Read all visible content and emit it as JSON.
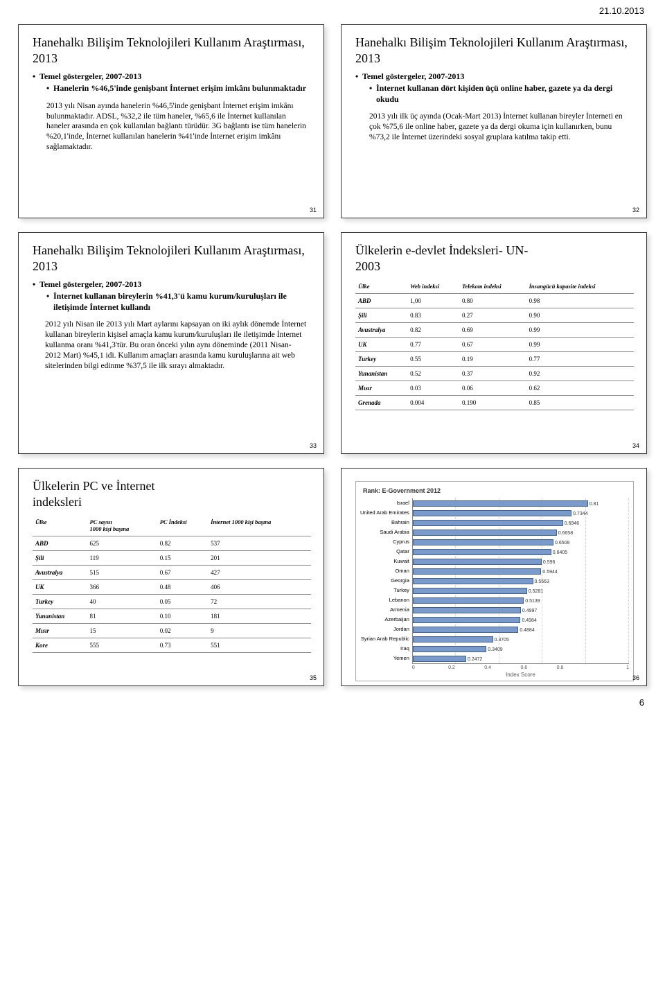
{
  "header_date": "21.10.2013",
  "page_number": "6",
  "slides": {
    "s31": {
      "title": "Hanehalkı Bilişim Teknolojileri Kullanım Araştırması, 2013",
      "bullet_l1": "Temel göstergeler, 2007-2013",
      "bullet_l2": "Hanelerin %46,5'inde genişbant İnternet erişim imkânı bulunmaktadır",
      "body": "2013 yılı Nisan ayında hanelerin %46,5'inde genişbant İnternet erişim imkânı bulunmaktadır. ADSL, %32,2 ile tüm haneler, %65,6 ile İnternet kullanılan haneler arasında en çok kullanılan bağlantı türüdür. 3G bağlantı ise tüm hanelerin %20,1'inde, İnternet kullanılan hanelerin %41'inde İnternet erişim imkânı sağlamaktadır.",
      "num": "31"
    },
    "s32": {
      "title": "Hanehalkı Bilişim Teknolojileri Kullanım Araştırması, 2013",
      "bullet_l1": "Temel göstergeler, 2007-2013",
      "bullet_l2": "İnternet kullanan dört kişiden üçü online haber, gazete ya da dergi okudu",
      "body": "2013 yılı ilk üç ayında (Ocak-Mart 2013) İnternet kullanan bireyler İnterneti en çok %75,6 ile online haber, gazete ya da dergi okuma için kullanırken, bunu %73,2 ile İnternet üzerindeki sosyal gruplara katılma takip etti.",
      "num": "32"
    },
    "s33": {
      "title": "Hanehalkı Bilişim Teknolojileri Kullanım Araştırması, 2013",
      "bullet_l1": "Temel göstergeler, 2007-2013",
      "bullet_l2": "İnternet kullanan bireylerin %41,3'ü kamu kurum/kuruluşları ile iletişimde İnternet kullandı",
      "body": "2012 yılı Nisan ile 2013 yılı Mart aylarını kapsayan on iki aylık dönemde İnternet kullanan bireylerin kişisel amaçla kamu kurum/kuruluşları ile iletişimde İnternet kullanma oranı %41,3'tür. Bu oran önceki yılın aynı döneminde (2011 Nisan-2012 Mart) %45,1 idi. Kullanım amaçları arasında kamu kuruluşlarına ait web sitelerinden bilgi edinme %37,5 ile ilk sırayı almaktadır.",
      "num": "33"
    },
    "s34": {
      "title": "Ülkelerin e-devlet İndeksleri- UN-\n2003",
      "table": {
        "headers": [
          "Ülke",
          "Web indeksi",
          "Telekom indeksi",
          "İnsangücü kapasite indeksi"
        ],
        "rows": [
          [
            "ABD",
            "1,00",
            "0.80",
            "0.98"
          ],
          [
            "Şili",
            "0.83",
            "0.27",
            "0.90"
          ],
          [
            "Avustralya",
            "0.82",
            "0.69",
            "0.99"
          ],
          [
            "UK",
            "0.77",
            "0.67",
            "0.99"
          ],
          [
            "Turkey",
            "0.55",
            "0.19",
            "0.77"
          ],
          [
            "Yunanistan",
            "0.52",
            "0.37",
            "0.92"
          ],
          [
            "Mısır",
            "0.03",
            "0.06",
            "0.62"
          ],
          [
            "Grenada",
            "0.004",
            "0.190",
            "0.85"
          ]
        ]
      },
      "num": "34"
    },
    "s35": {
      "title": "Ülkelerin PC ve İnternet\nindeksleri",
      "table": {
        "headers": [
          "Ülke",
          "PC sayısı\n1000 kişi başına",
          "PC İndeksi",
          "İnternet 1000 kişi başına"
        ],
        "rows": [
          [
            "ABD",
            "625",
            "0.82",
            "537"
          ],
          [
            "Şili",
            "119",
            "0.15",
            "201"
          ],
          [
            "Avustralya",
            "515",
            "0.67",
            "427"
          ],
          [
            "UK",
            "366",
            "0.48",
            "406"
          ],
          [
            "Turkey",
            "40",
            "0.05",
            "72"
          ],
          [
            "Yunanistan",
            "81",
            "0.10",
            "181"
          ],
          [
            "Mısır",
            "15",
            "0.02",
            "9"
          ],
          [
            "Kore",
            "555",
            "0.73",
            "551"
          ]
        ]
      },
      "num": "35"
    },
    "s36": {
      "chart": {
        "title": "Rank: E-Government 2012",
        "type": "bar",
        "bar_color": "#7a9acb",
        "bar_border": "#456080",
        "grid_color": "#cccccc",
        "xlim": [
          0,
          1
        ],
        "xticks": [
          "0",
          "0.2",
          "0.4",
          "0.6",
          "0.8",
          "1"
        ],
        "x_title": "Index Score",
        "rows": [
          {
            "label": "Israel",
            "value": 0.81,
            "display": "0.81"
          },
          {
            "label": "United Arab Emirates",
            "value": 0.7344,
            "display": "0.7344"
          },
          {
            "label": "Bahrain",
            "value": 0.6946,
            "display": "0.6946"
          },
          {
            "label": "Saudi Arabia",
            "value": 0.6658,
            "display": "0.6658"
          },
          {
            "label": "Cyprus",
            "value": 0.6508,
            "display": "0.6508"
          },
          {
            "label": "Qatar",
            "value": 0.6405,
            "display": "0.6405"
          },
          {
            "label": "Kuwait",
            "value": 0.596,
            "display": "0.596"
          },
          {
            "label": "Oman",
            "value": 0.5944,
            "display": "0.5944"
          },
          {
            "label": "Georgia",
            "value": 0.5563,
            "display": "0.5563"
          },
          {
            "label": "Turkey",
            "value": 0.5281,
            "display": "0.5281"
          },
          {
            "label": "Lebanon",
            "value": 0.5139,
            "display": "0.5139"
          },
          {
            "label": "Armenia",
            "value": 0.4997,
            "display": "0.4997"
          },
          {
            "label": "Azerbaijan",
            "value": 0.4984,
            "display": "0.4984"
          },
          {
            "label": "Jordan",
            "value": 0.4884,
            "display": "0.4884"
          },
          {
            "label": "Syrian Arab Republic",
            "value": 0.3705,
            "display": "0.3705"
          },
          {
            "label": "Iraq",
            "value": 0.3409,
            "display": "0.3409"
          },
          {
            "label": "Yemen",
            "value": 0.2472,
            "display": "0.2472"
          }
        ]
      },
      "num": "36"
    }
  }
}
